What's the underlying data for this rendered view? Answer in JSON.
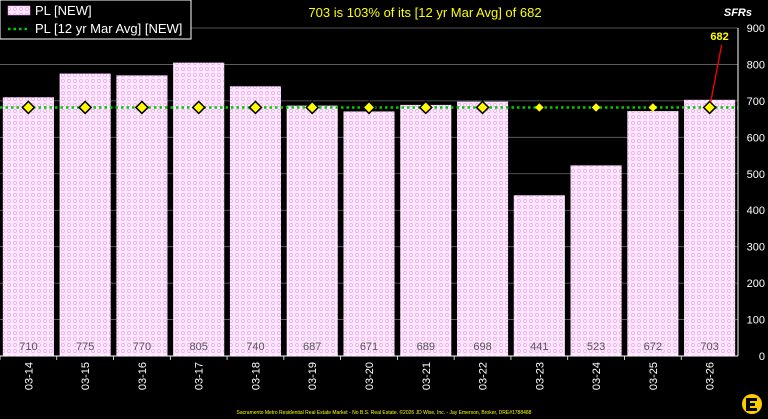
{
  "chart_data": {
    "type": "bar",
    "title": "703 is 103% of its [12 yr Mar Avg] of 682",
    "unit_label": "SFRs",
    "categories": [
      "03-14",
      "03-15",
      "03-16",
      "03-17",
      "03-18",
      "03-19",
      "03-20",
      "03-21",
      "03-22",
      "03-23",
      "03-24",
      "03-25",
      "03-26"
    ],
    "series": [
      {
        "name": "PL [NEW]",
        "type": "bar",
        "color": "#ffd0ff",
        "values": [
          710,
          775,
          770,
          805,
          740,
          687,
          671,
          689,
          698,
          441,
          523,
          672,
          703
        ]
      },
      {
        "name": "PL [12 yr Mar Avg] [NEW]",
        "type": "line",
        "color": "#00cc00",
        "marker_color": "#ffff00",
        "values": [
          682,
          682,
          682,
          682,
          682,
          682,
          682,
          682,
          682,
          682,
          682,
          682,
          682
        ]
      }
    ],
    "data_labels": [
      "710",
      "775",
      "770",
      "805",
      "740",
      "687",
      "671",
      "689",
      "698",
      "441",
      "523",
      "672",
      "703"
    ],
    "annotation": {
      "text": "682",
      "category": "03-26",
      "value": 682,
      "color": "#ff0000"
    },
    "ylim": [
      0,
      900
    ],
    "yticks": [
      0,
      100,
      200,
      300,
      400,
      500,
      600,
      700,
      800,
      900
    ],
    "ytick_labels": [
      "0",
      "100",
      "200",
      "300",
      "400",
      "500",
      "600",
      "700",
      "800",
      "900"
    ],
    "grid": true,
    "legend_position": "top-left",
    "footer": "Sacramento Metro Residential Real Estate Market - No B.S. Real Estate. ©2026 JD Wise, Inc. - Jay Emerson, Broker, DRE#1788488"
  }
}
